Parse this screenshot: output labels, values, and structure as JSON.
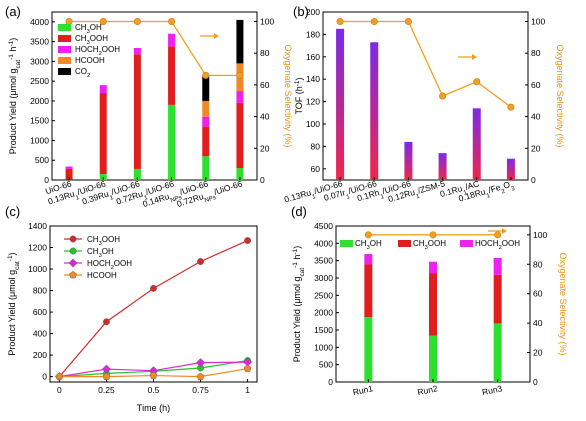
{
  "colors": {
    "ch3oh": "#2ee02e",
    "ch3ooh": "#e01e1e",
    "hoch2ooh": "#ee22ee",
    "hcooh": "#f08a28",
    "co2": "#000000",
    "selectivity": "#f0a020",
    "tof_top": "#7a2be8",
    "tof_bottom": "#f0264a",
    "series_ch3ooh": "#d42a2a",
    "series_ch3oh": "#28c428",
    "series_hoch2ooh": "#d62ad6",
    "series_hcooh": "#f08a28"
  },
  "chart_data": [
    {
      "panel": "(a)",
      "type": "bar",
      "stacked": true,
      "xlabel": "",
      "ylabel": "Product Yield (μmol g_cat^-1 h^-1)",
      "y2label": "Oxygenate Selectivity (%)",
      "ylim": [
        0,
        4250
      ],
      "yticks": [
        0,
        500,
        1000,
        1500,
        2000,
        2500,
        3000,
        3500,
        4000
      ],
      "y2lim": [
        0,
        106
      ],
      "y2ticks": [
        0,
        20,
        40,
        60,
        80,
        100
      ],
      "categories": [
        "UiO-66",
        "0.13Ru1/UiO-66",
        "0.39Ru1/UiO-66",
        "0.72Ru1/UiO-66",
        "0.14RuNPs/UiO-66",
        "0.72RuNPs/UiO-66"
      ],
      "series": [
        {
          "name": "CH3OH",
          "color_key": "ch3oh",
          "values": [
            0,
            150,
            280,
            1900,
            600,
            300
          ]
        },
        {
          "name": "CH3OOH",
          "color_key": "ch3ooh",
          "values": [
            280,
            2050,
            2900,
            1480,
            750,
            1650
          ]
        },
        {
          "name": "HOCH2OOH",
          "color_key": "hoch2ooh",
          "values": [
            60,
            200,
            160,
            320,
            250,
            300
          ]
        },
        {
          "name": "HCOOH",
          "color_key": "hcooh",
          "values": [
            0,
            0,
            0,
            0,
            400,
            700
          ]
        },
        {
          "name": "CO2",
          "color_key": "co2",
          "values": [
            0,
            0,
            0,
            0,
            620,
            1100
          ]
        }
      ],
      "selectivity": [
        100,
        100,
        100,
        100,
        66,
        66
      ],
      "legend": "top-left",
      "arrow": "right"
    },
    {
      "panel": "(b)",
      "type": "bar",
      "xlabel": "",
      "ylabel": "TOF (h^-1)",
      "y2label": "Oxygenate Selectivity (%)",
      "ylim": [
        50,
        200
      ],
      "yticks": [
        60,
        80,
        100,
        120,
        140,
        160,
        180,
        200
      ],
      "y2lim": [
        0,
        106
      ],
      "y2ticks": [
        0,
        20,
        40,
        60,
        80,
        100
      ],
      "categories": [
        "0.13Ru1/UiO-66",
        "0.07Ir1/UiO-66",
        "0.1Rh1/UiO-66",
        "0.12Ru1/ZSM-5",
        "0.1Ru1/AC",
        "0.18Ru1/Fe2O3"
      ],
      "values": [
        185,
        173,
        84,
        74,
        114,
        69
      ],
      "selectivity": [
        100,
        100,
        100,
        53,
        62,
        46
      ],
      "arrow": "right"
    },
    {
      "panel": "(c)",
      "type": "line",
      "xlabel": "Time (h)",
      "ylabel": "Product Yield (μmol g_cat^-1)",
      "xlim": [
        -0.05,
        1.05
      ],
      "xticks": [
        0,
        0.25,
        0.5,
        0.75,
        1
      ],
      "ylim": [
        -50,
        1400
      ],
      "yticks": [
        0,
        200,
        400,
        600,
        800,
        1000,
        1200,
        1400
      ],
      "x": [
        0,
        0.25,
        0.5,
        0.75,
        1
      ],
      "series": [
        {
          "name": "CH3OOH",
          "color_key": "series_ch3ooh",
          "marker": "circle",
          "values": [
            0,
            510,
            820,
            1070,
            1265
          ]
        },
        {
          "name": "CH3OH",
          "color_key": "series_ch3oh",
          "marker": "circle",
          "values": [
            0,
            30,
            50,
            80,
            150
          ]
        },
        {
          "name": "HOCH2OOH",
          "color_key": "series_hoch2ooh",
          "marker": "diamond",
          "values": [
            0,
            70,
            55,
            130,
            135
          ]
        },
        {
          "name": "HCOOH",
          "color_key": "series_hcooh",
          "marker": "pentagon",
          "values": [
            0,
            0,
            10,
            0,
            75
          ]
        }
      ],
      "legend": "top-left"
    },
    {
      "panel": "(d)",
      "type": "bar",
      "stacked": true,
      "xlabel": "",
      "ylabel": "Product Yield (μmol g_cat^-1 h^-1)",
      "y2label": "Oxygenate Selectivity (%)",
      "ylim": [
        0,
        4500
      ],
      "yticks": [
        0,
        500,
        1000,
        1500,
        2000,
        2500,
        3000,
        3500,
        4000,
        4500
      ],
      "y2lim": [
        0,
        106
      ],
      "y2ticks": [
        0,
        20,
        40,
        60,
        80,
        100
      ],
      "categories": [
        "Run1",
        "Run2",
        "Run3"
      ],
      "series": [
        {
          "name": "CH3OH",
          "color_key": "ch3oh",
          "values": [
            1870,
            1340,
            1690
          ]
        },
        {
          "name": "CH3OOH",
          "color_key": "ch3ooh",
          "values": [
            1520,
            1790,
            1400
          ]
        },
        {
          "name": "HOCH2OOH",
          "color_key": "hoch2ooh",
          "values": [
            300,
            340,
            490
          ]
        }
      ],
      "selectivity": [
        100,
        100,
        100
      ],
      "legend": "top",
      "arrow": "right"
    }
  ]
}
